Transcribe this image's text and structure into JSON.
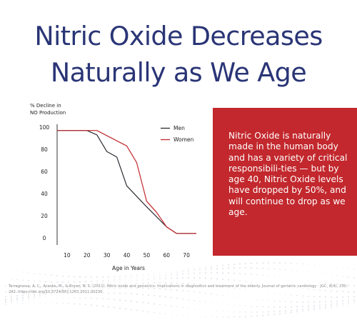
{
  "title": {
    "line1": "Nitric Oxide Decreases",
    "line2": "Naturally as We Age"
  },
  "callout": {
    "text": "Nitric Oxide is naturally made in the human body and has a variety of critical responsibili-ties — but by age 40, Nitric Oxide levels have dropped by 50%, and will continue to drop as we age.",
    "background": "#c2282d"
  },
  "citation": "Torregrossa, A. C., Aranke, M., & Bryan, N. S. (2011). Nitric oxide and geriatrics: Implications in diagnostics and treatment of the elderly. Journal of geriatric cardiology : JGC, 8(4), 230–242. https://doi.org/10.3724/SP.J.1263.2011.00230",
  "chart_data": {
    "type": "line",
    "ylabel": "% Decline in\nNO Production",
    "xlabel": "Age in Years",
    "xlim": [
      5,
      75
    ],
    "ylim": [
      0,
      100
    ],
    "x_ticks": [
      10,
      20,
      30,
      40,
      50,
      60,
      70
    ],
    "y_ticks": [
      0,
      20,
      40,
      60,
      80,
      100
    ],
    "grid": false,
    "legend_position": "top-right",
    "series": [
      {
        "name": "Men",
        "color": "#2b2b33",
        "x": [
          5,
          20,
          25,
          30,
          35,
          40,
          50,
          60,
          65,
          75
        ],
        "y": [
          97,
          97,
          93,
          78,
          73,
          47,
          28,
          10,
          4,
          4
        ]
      },
      {
        "name": "Women",
        "color": "#c2282d",
        "x": [
          5,
          25,
          40,
          45,
          50,
          55,
          60,
          65,
          75
        ],
        "y": [
          97,
          97,
          83,
          68,
          33,
          23,
          10,
          4,
          4
        ]
      }
    ]
  }
}
